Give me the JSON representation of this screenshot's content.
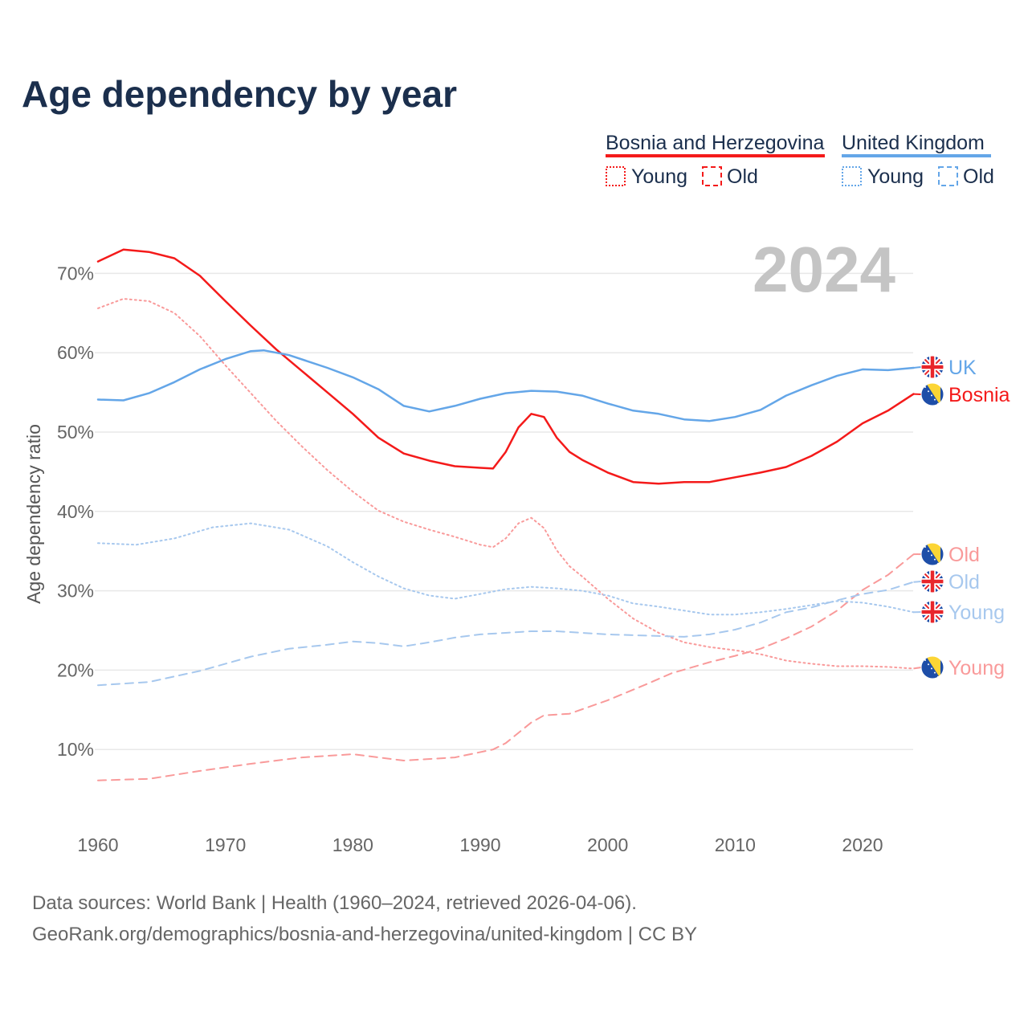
{
  "title": "Age dependency by year",
  "year_label": "2024",
  "legend": {
    "groups": [
      {
        "name": "Bosnia and Herzegovina",
        "color": "#f41a1a",
        "items": [
          "Young",
          "Old"
        ]
      },
      {
        "name": "United Kingdom",
        "color": "#64a6e8",
        "items": [
          "Young",
          "Old"
        ]
      }
    ]
  },
  "footer": {
    "line1": "Data sources: World Bank | Health (1960–2024, retrieved 2026-04-06).",
    "line2": "GeoRank.org/demographics/bosnia-and-herzegovina/united-kingdom | CC BY"
  },
  "chart_data": {
    "type": "line",
    "title": "Age dependency by year",
    "xlabel": "",
    "ylabel": "Age dependency ratio",
    "xlim": [
      1960,
      2024
    ],
    "ylim": [
      0,
      75
    ],
    "x_ticks": [
      1960,
      1970,
      1980,
      1990,
      2000,
      2010,
      2020
    ],
    "y_ticks": [
      10,
      20,
      30,
      40,
      50,
      60,
      70
    ],
    "y_tick_labels": [
      "10%",
      "20%",
      "30%",
      "40%",
      "50%",
      "60%",
      "70%"
    ],
    "grid": true,
    "series": [
      {
        "name": "Bosnia",
        "country": "Bosnia and Herzegovina",
        "flag": "ba",
        "kind": "total",
        "style": "solid",
        "color": "#f41a1a",
        "x": [
          1960,
          1962,
          1964,
          1966,
          1968,
          1970,
          1972,
          1974,
          1976,
          1978,
          1980,
          1982,
          1984,
          1986,
          1988,
          1990,
          1991,
          1992,
          1993,
          1994,
          1995,
          1996,
          1997,
          1998,
          2000,
          2002,
          2004,
          2006,
          2008,
          2010,
          2012,
          2014,
          2016,
          2018,
          2020,
          2022,
          2024
        ],
        "y": [
          71.5,
          73.0,
          72.7,
          71.9,
          69.7,
          66.5,
          63.4,
          60.4,
          57.7,
          55.0,
          52.3,
          49.3,
          47.3,
          46.4,
          45.7,
          45.5,
          45.4,
          47.5,
          50.6,
          52.3,
          51.9,
          49.3,
          47.5,
          46.5,
          44.9,
          43.7,
          43.5,
          43.7,
          43.7,
          44.3,
          44.9,
          45.6,
          47.0,
          48.8,
          51.1,
          52.7,
          54.8
        ]
      },
      {
        "name": "UK",
        "country": "United Kingdom",
        "flag": "uk",
        "kind": "total",
        "style": "solid",
        "color": "#64a6e8",
        "x": [
          1960,
          1962,
          1964,
          1966,
          1968,
          1970,
          1972,
          1973,
          1975,
          1978,
          1980,
          1982,
          1984,
          1986,
          1988,
          1990,
          1992,
          1994,
          1996,
          1998,
          2000,
          2002,
          2004,
          2006,
          2008,
          2010,
          2012,
          2014,
          2016,
          2018,
          2020,
          2022,
          2024
        ],
        "y": [
          54.1,
          54.0,
          54.9,
          56.3,
          57.9,
          59.2,
          60.2,
          60.3,
          59.7,
          58.1,
          56.9,
          55.4,
          53.3,
          52.6,
          53.3,
          54.2,
          54.9,
          55.2,
          55.1,
          54.6,
          53.6,
          52.7,
          52.3,
          51.6,
          51.4,
          51.9,
          52.8,
          54.6,
          55.9,
          57.1,
          57.9,
          57.8,
          58.1
        ]
      },
      {
        "name": "Young",
        "country": "Bosnia and Herzegovina",
        "flag": "ba",
        "kind": "young",
        "style": "dotted",
        "color": "#f99a9a",
        "x": [
          1960,
          1962,
          1964,
          1966,
          1968,
          1970,
          1972,
          1974,
          1976,
          1978,
          1980,
          1982,
          1984,
          1986,
          1988,
          1990,
          1991,
          1992,
          1993,
          1994,
          1995,
          1996,
          1997,
          1998,
          2000,
          2002,
          2004,
          2006,
          2008,
          2010,
          2012,
          2014,
          2016,
          2018,
          2020,
          2022,
          2024
        ],
        "y": [
          65.6,
          66.8,
          66.5,
          65.0,
          62.1,
          58.4,
          54.9,
          51.4,
          48.2,
          45.2,
          42.5,
          40.1,
          38.7,
          37.7,
          36.8,
          35.8,
          35.5,
          36.6,
          38.5,
          39.2,
          37.9,
          35.1,
          33.1,
          31.8,
          29.0,
          26.5,
          24.7,
          23.5,
          22.9,
          22.5,
          22.0,
          21.2,
          20.8,
          20.5,
          20.5,
          20.4,
          20.2
        ]
      },
      {
        "name": "Old",
        "country": "Bosnia and Herzegovina",
        "flag": "ba",
        "kind": "old",
        "style": "dashed",
        "color": "#f99a9a",
        "x": [
          1960,
          1964,
          1968,
          1972,
          1976,
          1980,
          1984,
          1988,
          1991,
          1992,
          1994,
          1995,
          1997,
          2000,
          2003,
          2005,
          2008,
          2010,
          2012,
          2014,
          2016,
          2018,
          2020,
          2022,
          2024
        ],
        "y": [
          6.1,
          6.3,
          7.3,
          8.2,
          9.0,
          9.4,
          8.6,
          9.0,
          10.0,
          10.8,
          13.4,
          14.3,
          14.5,
          16.2,
          18.2,
          19.6,
          21.0,
          21.8,
          22.7,
          24.0,
          25.5,
          27.5,
          30.1,
          32.0,
          34.6
        ]
      },
      {
        "name": "Young",
        "country": "United Kingdom",
        "flag": "uk",
        "kind": "young",
        "style": "dotted",
        "color": "#a7c8ee",
        "x": [
          1960,
          1963,
          1966,
          1969,
          1972,
          1975,
          1978,
          1980,
          1982,
          1984,
          1986,
          1988,
          1990,
          1992,
          1994,
          1996,
          1998,
          2000,
          2002,
          2004,
          2006,
          2008,
          2010,
          2012,
          2014,
          2016,
          2018,
          2020,
          2022,
          2024
        ],
        "y": [
          36.0,
          35.8,
          36.6,
          38.0,
          38.5,
          37.7,
          35.6,
          33.6,
          31.8,
          30.3,
          29.4,
          29.0,
          29.6,
          30.2,
          30.5,
          30.3,
          30.0,
          29.4,
          28.4,
          28.0,
          27.5,
          27.0,
          27.0,
          27.3,
          27.7,
          28.2,
          28.7,
          28.5,
          28.0,
          27.3
        ]
      },
      {
        "name": "Old",
        "country": "United Kingdom",
        "flag": "uk",
        "kind": "old",
        "style": "dashed",
        "color": "#a7c8ee",
        "x": [
          1960,
          1964,
          1968,
          1972,
          1975,
          1978,
          1980,
          1982,
          1984,
          1986,
          1988,
          1990,
          1992,
          1994,
          1996,
          1998,
          2000,
          2002,
          2004,
          2006,
          2008,
          2010,
          2012,
          2014,
          2016,
          2018,
          2020,
          2022,
          2024
        ],
        "y": [
          18.1,
          18.5,
          19.9,
          21.7,
          22.7,
          23.2,
          23.6,
          23.4,
          23.0,
          23.5,
          24.1,
          24.5,
          24.7,
          24.9,
          24.9,
          24.7,
          24.5,
          24.4,
          24.3,
          24.2,
          24.5,
          25.1,
          26.0,
          27.3,
          27.9,
          28.8,
          29.6,
          30.1,
          31.1
        ]
      }
    ]
  }
}
